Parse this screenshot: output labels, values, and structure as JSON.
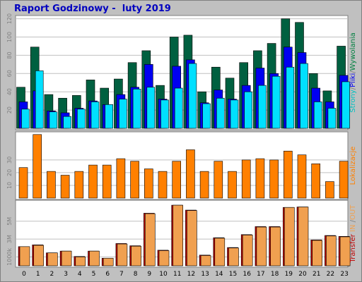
{
  "title": "Raport Godzinowy -  luty 2019",
  "colors": {
    "visits": "#006040",
    "files": "#0000f0",
    "hits": "#00e0ff",
    "sites": "#ff8000",
    "kbytes_in": "#c00000",
    "kbytes_out": "#f0a050",
    "background": "#c0c0c0",
    "plot_background": "#ffffff"
  },
  "chart_data": [
    {
      "type": "bar",
      "categories": [
        "0",
        "1",
        "2",
        "3",
        "4",
        "5",
        "6",
        "7",
        "8",
        "9",
        "10",
        "11",
        "12",
        "13",
        "14",
        "15",
        "16",
        "17",
        "18",
        "19",
        "20",
        "21",
        "22",
        "23"
      ],
      "ylabel_parts": [
        {
          "text": "Strony",
          "color": "#00c0c0"
        },
        {
          "text": "/",
          "color": "#808080"
        },
        {
          "text": "Pliki",
          "color": "#0000f0"
        },
        {
          "text": "/",
          "color": "#808080"
        },
        {
          "text": "Wywolania",
          "color": "#008040"
        }
      ],
      "yticks": [
        20,
        40,
        60,
        80,
        100,
        120
      ],
      "ylim": [
        0,
        122
      ],
      "series": [
        {
          "key": "hits",
          "values": [
            45,
            89,
            37,
            33,
            36,
            53,
            44,
            54,
            72,
            85,
            47,
            100,
            102,
            40,
            67,
            55,
            72,
            85,
            93,
            120,
            116,
            60,
            41,
            90
          ]
        },
        {
          "key": "files",
          "values": [
            29,
            41,
            19,
            17,
            22,
            30,
            26,
            37,
            45,
            70,
            32,
            68,
            75,
            28,
            42,
            32,
            47,
            66,
            60,
            89,
            83,
            44,
            29,
            58
          ]
        },
        {
          "key": "sites",
          "values": [
            21,
            63,
            18,
            13,
            21,
            29,
            26,
            32,
            43,
            45,
            31,
            44,
            71,
            27,
            33,
            31,
            40,
            47,
            57,
            67,
            71,
            29,
            22,
            51
          ]
        }
      ]
    },
    {
      "type": "bar",
      "categories": [
        "0",
        "1",
        "2",
        "3",
        "4",
        "5",
        "6",
        "7",
        "8",
        "9",
        "10",
        "11",
        "12",
        "13",
        "14",
        "15",
        "16",
        "17",
        "18",
        "19",
        "20",
        "21",
        "22",
        "23"
      ],
      "ylabel": "Lokalizacje",
      "yticks": [
        10,
        20,
        30
      ],
      "ylim": [
        0,
        51
      ],
      "series": [
        {
          "key": "sites",
          "values": [
            24,
            50,
            21,
            18,
            21,
            26,
            26,
            31,
            29,
            23,
            21,
            29,
            38,
            21,
            29,
            21,
            30,
            31,
            30,
            37,
            34,
            27,
            13,
            29
          ]
        }
      ]
    },
    {
      "type": "bar",
      "categories": [
        "0",
        "1",
        "2",
        "3",
        "4",
        "5",
        "6",
        "7",
        "8",
        "9",
        "10",
        "11",
        "12",
        "13",
        "14",
        "15",
        "16",
        "17",
        "18",
        "19",
        "20",
        "21",
        "22",
        "23"
      ],
      "ylabel_parts": [
        {
          "text": "Transfer",
          "color": "#c00000"
        },
        {
          "text": " IN ",
          "color": "#f0a050"
        },
        {
          "text": "/",
          "color": "#808080"
        },
        {
          "text": "OUT",
          "color": "#f0a050"
        }
      ],
      "yticks": [
        {
          "v": 1000,
          "label": "1000k"
        },
        {
          "v": 3000,
          "label": "3M"
        },
        {
          "v": 5000,
          "label": "5M"
        }
      ],
      "ylim": [
        0,
        7200
      ],
      "series": [
        {
          "key": "kbytes_in",
          "values": [
            2150,
            2350,
            1450,
            1650,
            1050,
            1650,
            850,
            2500,
            2250,
            5900,
            1750,
            6800,
            6250,
            1200,
            3150,
            2050,
            3500,
            4400,
            4400,
            6550,
            6600,
            2900,
            3400,
            3300
          ]
        },
        {
          "key": "kbytes_out",
          "values": [
            2150,
            2300,
            1450,
            1650,
            1000,
            1650,
            850,
            2450,
            2200,
            5850,
            1700,
            6800,
            6200,
            1150,
            3100,
            2000,
            3450,
            4350,
            4350,
            6550,
            6600,
            2850,
            3350,
            3250
          ]
        }
      ]
    }
  ]
}
